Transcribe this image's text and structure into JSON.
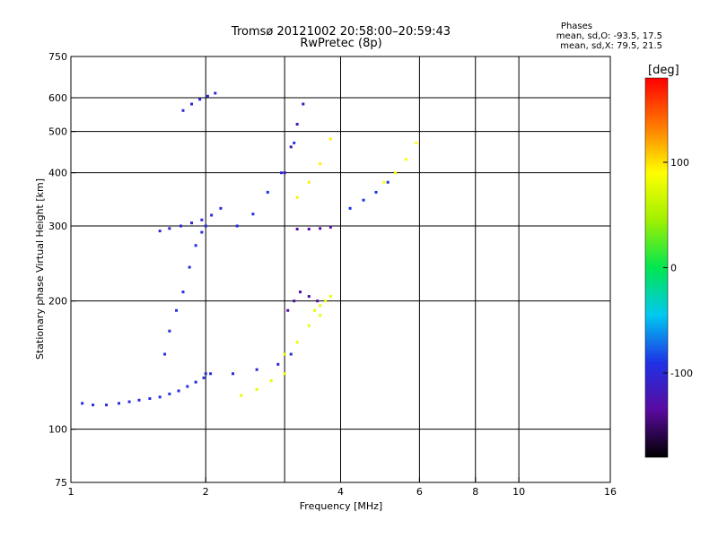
{
  "header": {
    "title": "Tromsø 20121002 20:58:00–20:59:43",
    "subtitle": "RwPretec (8p)",
    "phase_heading": "Phases",
    "phase_o": "mean, sd,O: -93.5, 17.5",
    "phase_x": "mean, sd,X:  79.5, 21.5"
  },
  "chart_data": {
    "type": "scatter",
    "title": "Tromsø 20121002 20:58:00–20:59:43",
    "subtitle": "RwPretec (8p)",
    "xlabel": "Frequency [MHz]",
    "ylabel": "Stationary phase Virtual Height [km]",
    "x_scale": "log",
    "y_scale": "log",
    "xlim": [
      1,
      16
    ],
    "ylim": [
      75,
      750
    ],
    "x_ticks": [
      1,
      2,
      4,
      6,
      8,
      10,
      16
    ],
    "x_tick_labels": [
      "1",
      "2",
      "4",
      "6",
      "8",
      "10",
      "16"
    ],
    "x_grid": [
      2,
      3,
      4,
      6,
      8,
      10
    ],
    "y_ticks": [
      75,
      100,
      200,
      300,
      400,
      500,
      600,
      750
    ],
    "y_tick_labels": [
      "75",
      "100",
      "200",
      "300",
      "400",
      "500",
      "600",
      "750"
    ],
    "y_grid": [
      100,
      200,
      300,
      400,
      500,
      600
    ],
    "grid": true,
    "colorbar": {
      "label": "[deg]",
      "range": [
        -180,
        180
      ],
      "ticks": [
        100,
        0,
        -100
      ],
      "tick_labels": [
        "100",
        "0",
        "-100"
      ],
      "colors": [
        "#000000",
        "#5a0aa0",
        "#1e32e6",
        "#00c8f0",
        "#00e650",
        "#a0f000",
        "#ffff00",
        "#ff7800",
        "#ff0000"
      ]
    },
    "series": [
      {
        "x": [
          1.06,
          1.12,
          1.2,
          1.28,
          1.35,
          1.42,
          1.5,
          1.58,
          1.66,
          1.74,
          1.82,
          1.9,
          1.98,
          2.05
        ],
        "y": [
          115,
          114,
          114,
          115,
          116,
          117,
          118,
          119,
          121,
          123,
          126,
          129,
          132,
          135
        ],
        "phase": -95
      },
      {
        "x": [
          1.62,
          1.66,
          1.72,
          1.78,
          1.84,
          1.9,
          1.96,
          2.0
        ],
        "y": [
          150,
          170,
          190,
          210,
          240,
          270,
          290,
          300
        ],
        "phase": -95
      },
      {
        "x": [
          1.58,
          1.66,
          1.76,
          1.86,
          1.96,
          2.06,
          2.16
        ],
        "y": [
          292,
          296,
          300,
          305,
          310,
          318,
          330
        ],
        "phase": -100
      },
      {
        "x": [
          1.78,
          1.86,
          1.94,
          2.02,
          2.1
        ],
        "y": [
          560,
          580,
          595,
          605,
          615
        ],
        "phase": -100
      },
      {
        "x": [
          2.0,
          2.3,
          2.6,
          2.9,
          3.1
        ],
        "y": [
          135,
          135,
          138,
          142,
          150
        ],
        "phase": -100
      },
      {
        "x": [
          2.35,
          2.55,
          2.75,
          2.95,
          3.15
        ],
        "y": [
          300,
          320,
          360,
          400,
          470
        ],
        "phase": -90
      },
      {
        "x": [
          3.05,
          3.15,
          3.25,
          3.4,
          3.55
        ],
        "y": [
          190,
          200,
          210,
          205,
          200
        ],
        "phase": -130
      },
      {
        "x": [
          3.2,
          3.4,
          3.6,
          3.8
        ],
        "y": [
          295,
          295,
          296,
          298
        ],
        "phase": -130
      },
      {
        "x": [
          3.0,
          3.1,
          3.2,
          3.3
        ],
        "y": [
          400,
          460,
          520,
          580
        ],
        "phase": -120
      },
      {
        "x": [
          2.4,
          2.6,
          2.8,
          3.0
        ],
        "y": [
          120,
          124,
          130,
          135
        ],
        "phase": 80
      },
      {
        "x": [
          3.0,
          3.2,
          3.4,
          3.6
        ],
        "y": [
          150,
          160,
          175,
          185
        ],
        "phase": 80
      },
      {
        "x": [
          3.5,
          3.6,
          3.7,
          3.8
        ],
        "y": [
          190,
          195,
          200,
          205
        ],
        "phase": 80
      },
      {
        "x": [
          3.2,
          3.4,
          3.6,
          3.8
        ],
        "y": [
          350,
          380,
          420,
          480
        ],
        "phase": 95
      },
      {
        "x": [
          4.2,
          4.5,
          4.8,
          5.1
        ],
        "y": [
          330,
          345,
          360,
          380
        ],
        "phase": -90
      },
      {
        "x": [
          5.0,
          5.3,
          5.6,
          5.9
        ],
        "y": [
          380,
          400,
          430,
          470
        ],
        "phase": 90
      }
    ]
  }
}
